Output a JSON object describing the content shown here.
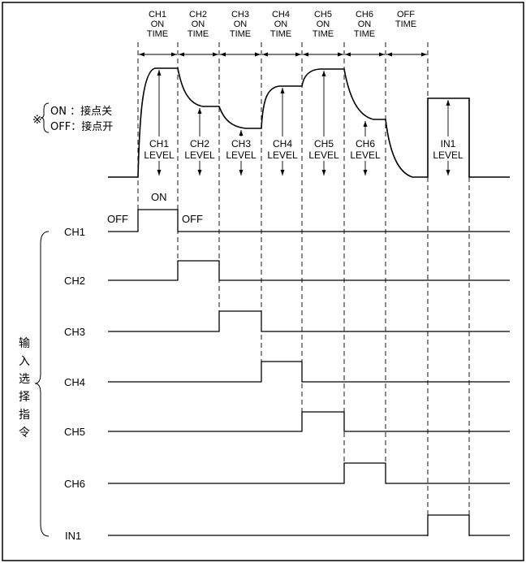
{
  "top_labels": [
    {
      "lines": [
        "CH1",
        "ON",
        "TIME"
      ]
    },
    {
      "lines": [
        "CH2",
        "ON",
        "TIME"
      ]
    },
    {
      "lines": [
        "CH3",
        "ON",
        "TIME"
      ]
    },
    {
      "lines": [
        "CH4",
        "ON",
        "TIME"
      ]
    },
    {
      "lines": [
        "CH5",
        "ON",
        "TIME"
      ]
    },
    {
      "lines": [
        "CH6",
        "ON",
        "TIME"
      ]
    },
    {
      "lines": [
        "OFF",
        "TIME"
      ]
    }
  ],
  "level_labels": [
    {
      "lines": [
        "CH1",
        "LEVEL"
      ]
    },
    {
      "lines": [
        "CH2",
        "LEVEL"
      ]
    },
    {
      "lines": [
        "CH3",
        "LEVEL"
      ]
    },
    {
      "lines": [
        "CH4",
        "LEVEL"
      ]
    },
    {
      "lines": [
        "CH5",
        "LEVEL"
      ]
    },
    {
      "lines": [
        "CH6",
        "LEVEL"
      ]
    },
    {
      "lines": [
        "IN1",
        "LEVEL"
      ]
    }
  ],
  "note": {
    "mark": "※",
    "on_line": "ON  ：接点关",
    "off_line": "OFF：接点开"
  },
  "ch1_markers": {
    "on": "ON",
    "off_left": "OFF",
    "off_right": "OFF"
  },
  "channels": [
    "CH1",
    "CH2",
    "CH3",
    "CH4",
    "CH5",
    "CH6",
    "IN1"
  ],
  "group_label": [
    "输",
    "入",
    "选",
    "择",
    "指",
    "令"
  ]
}
